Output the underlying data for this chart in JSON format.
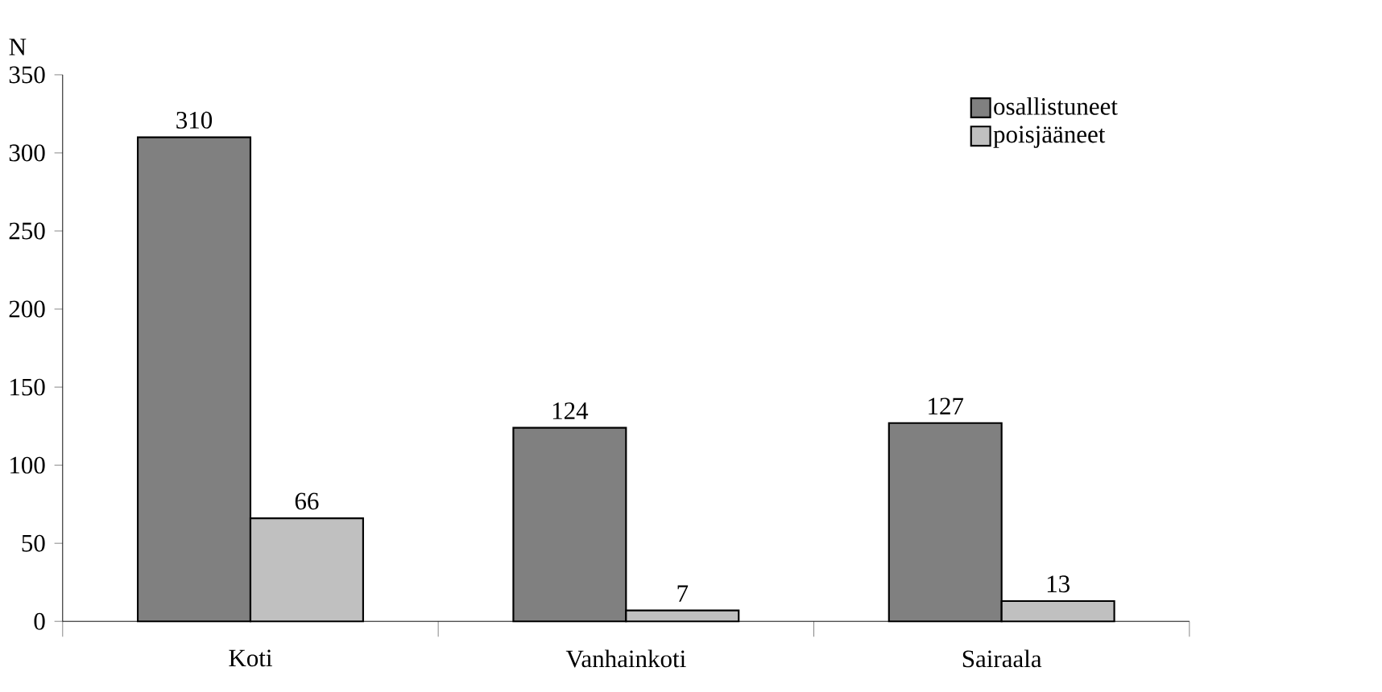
{
  "chart_data": {
    "type": "bar",
    "ylabel": "N",
    "categories": [
      "Koti",
      "Vanhainkoti",
      "Sairaala"
    ],
    "series": [
      {
        "name": "osallistuneet",
        "color": "#808080",
        "values": [
          310,
          124,
          127
        ]
      },
      {
        "name": "poisjääneet",
        "color": "#c0c0c0",
        "values": [
          66,
          7,
          13
        ]
      }
    ],
    "ylim": [
      0,
      350
    ],
    "yticks": [
      0,
      50,
      100,
      150,
      200,
      250,
      300,
      350
    ],
    "data_labels": true,
    "legend": "top right"
  }
}
